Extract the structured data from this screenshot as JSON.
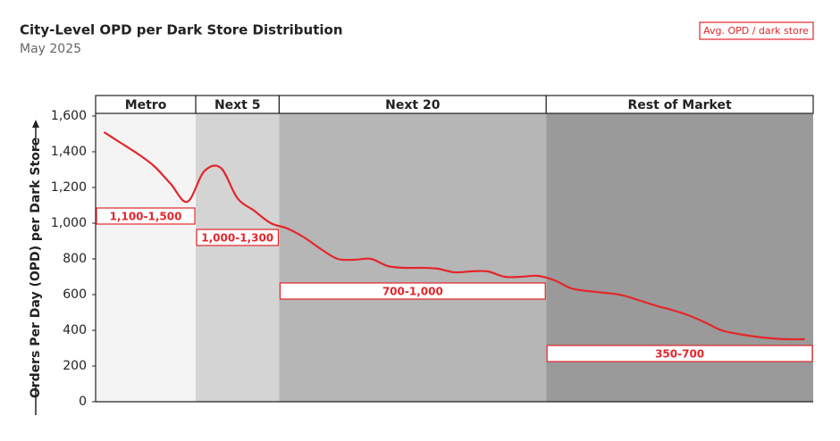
{
  "chart_data": {
    "type": "line",
    "title": "City-Level OPD per Dark Store Distribution",
    "subtitle": "May 2025",
    "y_label": "Orders Per Day (OPD) per Dark Store",
    "line": {
      "name": "Avg. OPD / dark store",
      "color": "#e3262b"
    },
    "ylim": [
      0,
      1600
    ],
    "yticks": [
      0,
      200,
      400,
      600,
      800,
      {
        "value": 1000,
        "label": "1,000"
      },
      {
        "value": 1200,
        "label": "1,200"
      },
      {
        "value": 1400,
        "label": "1,400"
      },
      {
        "value": 1600,
        "label": "1,600"
      }
    ],
    "segments": [
      {
        "name": "Metro",
        "range_label": "1,100-1,500",
        "color": "#f4f4f4",
        "values": [
          1510,
          1450,
          1390,
          1320,
          1220,
          1120
        ]
      },
      {
        "name": "Next 5",
        "range_label": "1,000-1,300",
        "color": "#d4d4d4",
        "values": [
          1290,
          1310,
          1140,
          1070,
          1000
        ]
      },
      {
        "name": "Next 20",
        "range_label": "700-1,000",
        "color": "#b6b6b6",
        "values": [
          970,
          920,
          855,
          800,
          795,
          800,
          760,
          750,
          750,
          745,
          725,
          730,
          730,
          700,
          700,
          705
        ]
      },
      {
        "name": "Rest of Market",
        "range_label": "350-700",
        "color": "#9a9a9a",
        "values": [
          680,
          635,
          620,
          610,
          598,
          570,
          540,
          515,
          485,
          445,
          400,
          380,
          365,
          355,
          350,
          350
        ]
      }
    ]
  }
}
